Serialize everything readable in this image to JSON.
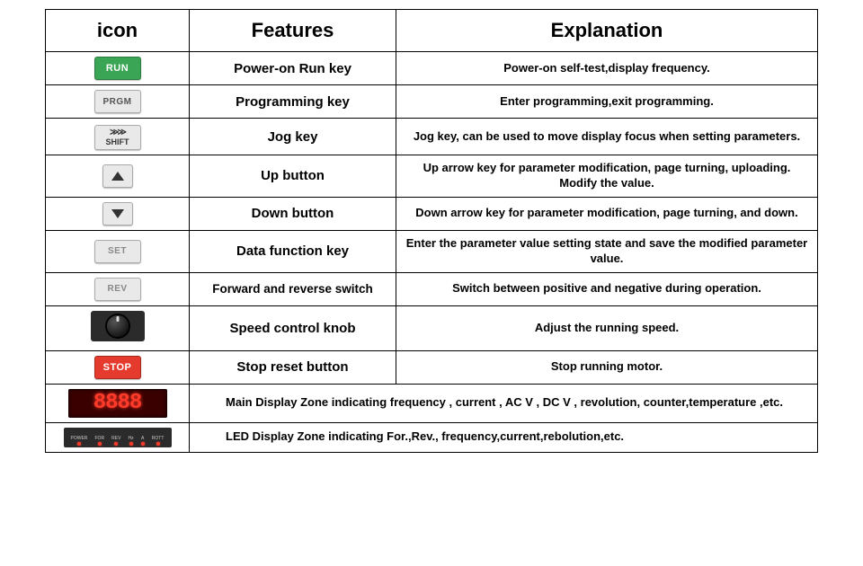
{
  "headers": {
    "icon": "icon",
    "features": "Features",
    "explanation": "Explanation"
  },
  "rows": [
    {
      "icon_label": "RUN",
      "feature": "Power-on  Run key",
      "explanation": "Power-on self-test,display frequency."
    },
    {
      "icon_label": "PRGM",
      "feature": "Programming  key",
      "explanation": "Enter programming,exit programming."
    },
    {
      "icon_top": "≫≫",
      "icon_label": "SHIFT",
      "feature": "Jog  key",
      "explanation": "Jog key, can be used to move display focus when setting parameters."
    },
    {
      "feature": "Up  button",
      "explanation": "Up arrow key for parameter modification, page turning, uploading. Modify the value."
    },
    {
      "feature": "Down  button",
      "explanation": "Down arrow key for parameter modification, page turning, and down."
    },
    {
      "icon_label": "SET",
      "feature": "Data function key",
      "explanation": "Enter the parameter value setting state and save the modified parameter value."
    },
    {
      "icon_label": "REV",
      "feature": "Forward and reverse switch",
      "explanation": "Switch between positive and negative during operation."
    },
    {
      "feature": "Speed control knob",
      "explanation": "Adjust the running speed."
    },
    {
      "icon_label": "STOP",
      "feature": "Stop reset button",
      "explanation": "Stop running motor."
    }
  ],
  "wide_rows": [
    {
      "display_text": "8888",
      "explanation": "Main  Display  Zone indicating frequency , current , AC V , DC V , revolution, counter,temperature ,etc."
    },
    {
      "led_labels": [
        "POWER",
        "FOR",
        "REV",
        "Hz",
        "A",
        "ROTT"
      ],
      "explanation": "LED  Display Zone indicating For.,Rev., frequency,current,rebolution,etc."
    }
  ],
  "colors": {
    "run_bg": "#3aa655",
    "stop_bg": "#e53b2e",
    "grey_bg": "#e9e9e9",
    "seg_bg": "#3a0000",
    "seg_fg": "#ff3a2a",
    "panel_bg": "#2b2b2b"
  }
}
